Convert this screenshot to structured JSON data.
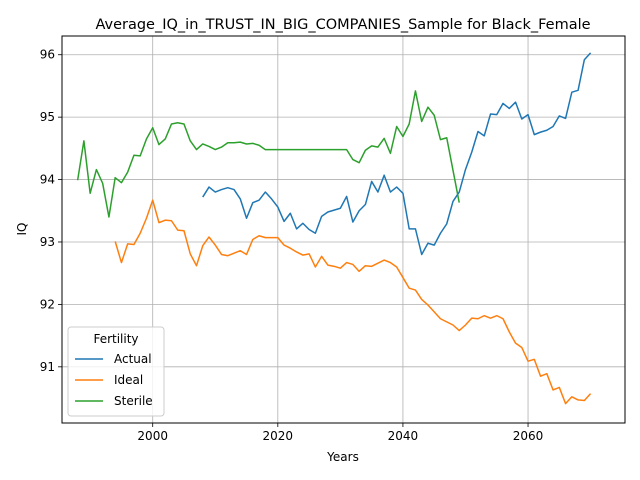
{
  "chart_data": {
    "type": "line",
    "title": "Average_IQ_in_TRUST_IN_BIG_COMPANIES_Sample for Black_Female",
    "xlabel": "Years",
    "ylabel": "IQ",
    "xlim": [
      2085.5,
      2075.5
    ],
    "ylim": [
      90.1,
      96.3
    ],
    "x_ticks": [
      2000,
      2020,
      2040,
      2060
    ],
    "y_ticks": [
      91,
      92,
      93,
      94,
      95,
      96
    ],
    "grid": true,
    "legend": {
      "title": "Fertility",
      "placement": "lower-left"
    },
    "series": [
      {
        "name": "Actual",
        "color": "#1f77b4",
        "x": [
          2008,
          2009,
          2010,
          2011,
          2012,
          2013,
          2014,
          2015,
          2016,
          2017,
          2018,
          2019,
          2020,
          2021,
          2022,
          2023,
          2024,
          2025,
          2026,
          2027,
          2028,
          2029,
          2030,
          2031,
          2032,
          2033,
          2034,
          2035,
          2036,
          2037,
          2038,
          2039,
          2040,
          2041,
          2042,
          2043,
          2044,
          2045,
          2046,
          2047,
          2048,
          2049,
          2050,
          2051,
          2052,
          2053,
          2054,
          2055,
          2056,
          2057,
          2058,
          2059,
          2060,
          2061,
          2062,
          2063,
          2064,
          2065,
          2066,
          2067,
          2068,
          2069,
          2070
        ],
        "values": [
          93.72,
          93.88,
          93.8,
          93.84,
          93.87,
          93.84,
          93.69,
          93.38,
          93.63,
          93.67,
          93.8,
          93.69,
          93.56,
          93.33,
          93.46,
          93.21,
          93.3,
          93.2,
          93.14,
          93.41,
          93.48,
          93.51,
          93.54,
          93.73,
          93.32,
          93.5,
          93.6,
          93.97,
          93.8,
          94.07,
          93.8,
          93.88,
          93.78,
          93.21,
          93.21,
          92.8,
          92.98,
          92.95,
          93.14,
          93.29,
          93.65,
          93.8,
          94.16,
          94.44,
          94.77,
          94.7,
          95.05,
          95.04,
          95.22,
          95.14,
          95.24,
          94.97,
          95.04,
          94.72,
          94.76,
          94.79,
          94.85,
          95.02,
          94.98,
          95.4,
          95.43,
          95.92,
          96.03
        ]
      },
      {
        "name": "Ideal",
        "color": "#ff7f0e",
        "x": [
          1994,
          1995,
          1996,
          1997,
          1998,
          1999,
          2000,
          2001,
          2002,
          2003,
          2004,
          2005,
          2006,
          2007,
          2008,
          2009,
          2010,
          2011,
          2012,
          2013,
          2014,
          2015,
          2016,
          2017,
          2018,
          2019,
          2020,
          2021,
          2022,
          2023,
          2024,
          2025,
          2026,
          2027,
          2028,
          2029,
          2030,
          2031,
          2032,
          2033,
          2034,
          2035,
          2036,
          2037,
          2038,
          2039,
          2040,
          2041,
          2042,
          2043,
          2044,
          2045,
          2046,
          2047,
          2048,
          2049,
          2050,
          2051,
          2052,
          2053,
          2054,
          2055,
          2056,
          2057,
          2058,
          2059,
          2060,
          2061,
          2062,
          2063,
          2064,
          2065,
          2066,
          2067,
          2068,
          2069,
          2070
        ],
        "values": [
          93.01,
          92.67,
          92.97,
          92.96,
          93.14,
          93.38,
          93.67,
          93.31,
          93.35,
          93.34,
          93.19,
          93.18,
          92.81,
          92.62,
          92.94,
          93.08,
          92.95,
          92.8,
          92.78,
          92.82,
          92.86,
          92.8,
          93.04,
          93.1,
          93.07,
          93.07,
          93.07,
          92.95,
          92.9,
          92.84,
          92.79,
          92.81,
          92.6,
          92.77,
          92.63,
          92.61,
          92.58,
          92.67,
          92.64,
          92.53,
          92.62,
          92.61,
          92.66,
          92.71,
          92.67,
          92.6,
          92.43,
          92.26,
          92.23,
          92.08,
          91.99,
          91.88,
          91.77,
          91.72,
          91.67,
          91.58,
          91.67,
          91.78,
          91.77,
          91.82,
          91.78,
          91.82,
          91.77,
          91.56,
          91.38,
          91.31,
          91.09,
          91.12,
          90.85,
          90.89,
          90.63,
          90.67,
          90.41,
          90.52,
          90.47,
          90.46,
          90.57
        ]
      },
      {
        "name": "Sterile",
        "color": "#2ca02c",
        "x": [
          1988,
          1989,
          1990,
          1991,
          1992,
          1993,
          1994,
          1995,
          1996,
          1997,
          1998,
          1999,
          2000,
          2001,
          2002,
          2003,
          2004,
          2005,
          2006,
          2007,
          2008,
          2009,
          2010,
          2011,
          2012,
          2013,
          2014,
          2015,
          2016,
          2017,
          2018,
          2019,
          2020,
          2021,
          2022,
          2023,
          2024,
          2025,
          2026,
          2027,
          2028,
          2029,
          2030,
          2031,
          2032,
          2033,
          2034,
          2035,
          2036,
          2037,
          2038,
          2039,
          2040,
          2041,
          2042,
          2043,
          2044,
          2045,
          2046,
          2047,
          2048,
          2049
        ],
        "values": [
          93.99,
          94.62,
          93.78,
          94.16,
          93.94,
          93.4,
          94.03,
          93.95,
          94.12,
          94.39,
          94.38,
          94.65,
          94.83,
          94.56,
          94.65,
          94.89,
          94.91,
          94.89,
          94.62,
          94.48,
          94.57,
          94.53,
          94.48,
          94.52,
          94.59,
          94.59,
          94.6,
          94.57,
          94.58,
          94.55,
          94.48,
          94.48,
          94.48,
          94.48,
          94.48,
          94.48,
          94.48,
          94.48,
          94.48,
          94.48,
          94.48,
          94.48,
          94.48,
          94.48,
          94.32,
          94.27,
          94.47,
          94.54,
          94.52,
          94.66,
          94.42,
          94.85,
          94.69,
          94.89,
          95.42,
          94.93,
          95.16,
          95.03,
          94.64,
          94.67,
          94.15,
          93.63
        ]
      }
    ]
  }
}
